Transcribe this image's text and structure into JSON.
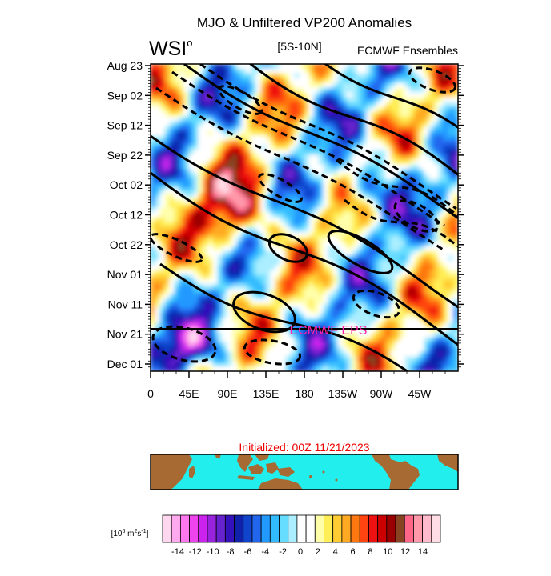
{
  "chart_data": {
    "type": "heatmap",
    "title": "MJO & Unfiltered VP200 Anomalies",
    "logo_text": "WSI",
    "logo_superscript": "o",
    "region_label": "[5S-10N]",
    "source_label": "ECMWF Ensembles",
    "forecast_line_label": "ECMWF EPS",
    "forecast_start": "Nov 21",
    "initialized_label": "Initialized: 00Z 11/21/2023",
    "y_ticks": [
      "Aug 23",
      "Sep 02",
      "Sep 12",
      "Sep 22",
      "Oct 02",
      "Oct 12",
      "Oct 22",
      "Nov 01",
      "Nov 11",
      "Nov 21",
      "Dec 01"
    ],
    "x_ticks": [
      "0",
      "45E",
      "90E",
      "135E",
      "180",
      "135W",
      "90W",
      "45W"
    ],
    "x_tick_lon": [
      0,
      45,
      90,
      135,
      180,
      225,
      270,
      315
    ],
    "xlim_lon": [
      0,
      360
    ],
    "colorbar": {
      "unit_base": "10",
      "unit_exp": "6",
      "unit_m": "m",
      "unit_m_exp": "2",
      "unit_s": "s",
      "unit_s_exp": "-1",
      "tick_labels": [
        "-14",
        "-12",
        "-10",
        "-8",
        "-6",
        "-4",
        "-2",
        "0",
        "2",
        "4",
        "6",
        "8",
        "10",
        "12",
        "14"
      ],
      "colors": [
        "#ffd8f0",
        "#ffaaee",
        "#ff77ee",
        "#ee44ee",
        "#cc22ee",
        "#9922dd",
        "#6622cc",
        "#3311bb",
        "#1122aa",
        "#1144cc",
        "#2266ee",
        "#2299ff",
        "#33bbff",
        "#66ddff",
        "#aaeeff",
        "#ffffff",
        "#ffffff",
        "#ffffaa",
        "#ffee55",
        "#ffcc33",
        "#ffaa22",
        "#ff7711",
        "#ff4411",
        "#ee1111",
        "#cc0000",
        "#990000",
        "#884422",
        "#ff6688",
        "#ff99aa",
        "#ffbbcc",
        "#ffdde6"
      ]
    },
    "colors": {
      "logo": "#1a1aee",
      "forecast_label": "#ff22aa",
      "initialized": "#ee0000",
      "ocean": "#22eeee",
      "land": "#a86a33"
    }
  }
}
